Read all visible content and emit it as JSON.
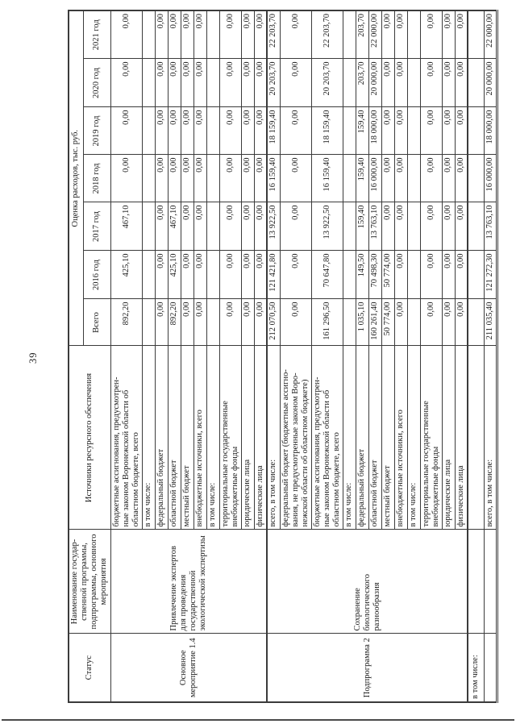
{
  "page": {
    "number": "39"
  },
  "table": {
    "header": {
      "status": "Статус",
      "name": "Наименование государ-\nственной программы,\nподпрограммы, основного\nмероприятия",
      "sources": "Источники ресурсного обеспечения",
      "costs_title": "Оценка расходов, тыс. руб.",
      "years": [
        "Всего",
        "2016 год",
        "2017 год",
        "2018 год",
        "2019 год",
        "2020 год",
        "2021 год"
      ]
    },
    "sections": [
      {
        "thick_top": false,
        "status": "Основное\nмероприятие 1.4",
        "name": "Привлечение экспертов\nдля проведения\nгосударственной\nэкологической экспертизы",
        "rows": [
          {
            "source": "бюджетные ассигнования, предусмотрен-\nные законом Воронежской области об\nобластном бюджете, всего",
            "values": [
              "892,20",
              "425,10",
              "467,10",
              "0,00",
              "0,00",
              "0,00",
              "0,00"
            ]
          },
          {
            "source": "в том числе:",
            "values": [
              "",
              "",
              "",
              "",
              "",
              "",
              ""
            ]
          },
          {
            "source": "федеральный бюджет",
            "values": [
              "0,00",
              "0,00",
              "0,00",
              "0,00",
              "0,00",
              "0,00",
              "0,00"
            ]
          },
          {
            "source": "областной бюджет",
            "values": [
              "892,20",
              "425,10",
              "467,10",
              "0,00",
              "0,00",
              "0,00",
              "0,00"
            ]
          },
          {
            "source": "местный бюджет",
            "values": [
              "0,00",
              "0,00",
              "0,00",
              "0,00",
              "0,00",
              "0,00",
              "0,00"
            ]
          },
          {
            "source": "внебюджетные источники, всего",
            "values": [
              "0,00",
              "0,00",
              "0,00",
              "0,00",
              "0,00",
              "0,00",
              "0,00"
            ]
          },
          {
            "source": "в том числе:",
            "values": [
              "",
              "",
              "",
              "",
              "",
              "",
              ""
            ]
          },
          {
            "source": "территориальные государственные\nвнебюджетные фонды",
            "values": [
              "0,00",
              "0,00",
              "0,00",
              "0,00",
              "0,00",
              "0,00",
              "0,00"
            ]
          },
          {
            "source": "юридические лица",
            "values": [
              "0,00",
              "0,00",
              "0,00",
              "0,00",
              "0,00",
              "0,00",
              "0,00"
            ]
          },
          {
            "source": "физические лица",
            "values": [
              "0,00",
              "0,00",
              "0,00",
              "0,00",
              "0,00",
              "0,00",
              "0,00"
            ]
          }
        ]
      },
      {
        "thick_top": true,
        "status": "Подпрограмма 2",
        "name": "Сохранение\nбиологического\nразнообразия",
        "rows": [
          {
            "source": "всего, в том числе:",
            "values": [
              "212 070,50",
              "121 421,80",
              "13 922,50",
              "16 159,40",
              "18 159,40",
              "20 203,70",
              "22 203,70"
            ]
          },
          {
            "source": "федеральный бюджет (бюджетные ассигно-\nвания, не предусмотренные законом Воро-\nнежской области об областном бюджете)",
            "values": [
              "0,00",
              "0,00",
              "0,00",
              "0,00",
              "0,00",
              "0,00",
              "0,00"
            ]
          },
          {
            "source": "бюджетные ассигнования, предусмотрен-\nные законом Воронежской области об\nобластном бюджете, всего",
            "values": [
              "161 296,50",
              "70 647,80",
              "13 922,50",
              "16 159,40",
              "18 159,40",
              "20 203,70",
              "22 203,70"
            ]
          },
          {
            "source": "в том числе:",
            "values": [
              "",
              "",
              "",
              "",
              "",
              "",
              ""
            ]
          },
          {
            "source": "федеральный бюджет",
            "values": [
              "1 035,10",
              "149,50",
              "159,40",
              "159,40",
              "159,40",
              "203,70",
              "203,70"
            ]
          },
          {
            "source": "областной бюджет",
            "values": [
              "160 261,40",
              "70 498,30",
              "13 763,10",
              "16 000,00",
              "18 000,00",
              "20 000,00",
              "22 000,00"
            ]
          },
          {
            "source": "местный бюджет",
            "values": [
              "50 774,00",
              "50 774,00",
              "0,00",
              "0,00",
              "0,00",
              "0,00",
              "0,00"
            ]
          },
          {
            "source": "внебюджетные источники, всего",
            "values": [
              "0,00",
              "0,00",
              "0,00",
              "0,00",
              "0,00",
              "0,00",
              "0,00"
            ]
          },
          {
            "source": "в том числе:",
            "values": [
              "",
              "",
              "",
              "",
              "",
              "",
              ""
            ]
          },
          {
            "source": "территориальные государственные\nвнебюджетные фонды",
            "values": [
              "0,00",
              "0,00",
              "0,00",
              "0,00",
              "0,00",
              "0,00",
              "0,00"
            ]
          },
          {
            "source": "юридические лица",
            "values": [
              "0,00",
              "0,00",
              "0,00",
              "0,00",
              "0,00",
              "0,00",
              "0,00"
            ]
          },
          {
            "source": "физические лица",
            "values": [
              "0,00",
              "0,00",
              "0,00",
              "0,00",
              "0,00",
              "0,00",
              "0,00"
            ]
          }
        ]
      }
    ],
    "tail_rows": [
      {
        "thick_top": true,
        "status": "в том числе:",
        "name": "",
        "source": "",
        "values": [
          "",
          "",
          "",
          "",
          "",
          "",
          ""
        ]
      },
      {
        "thick_top": false,
        "status": "",
        "name": "",
        "source": "всего, в том числе:",
        "values": [
          "211 035,40",
          "121 272,30",
          "13 763,10",
          "16 000,00",
          "18 000,00",
          "20 000,00",
          "22 000,00"
        ]
      }
    ]
  }
}
